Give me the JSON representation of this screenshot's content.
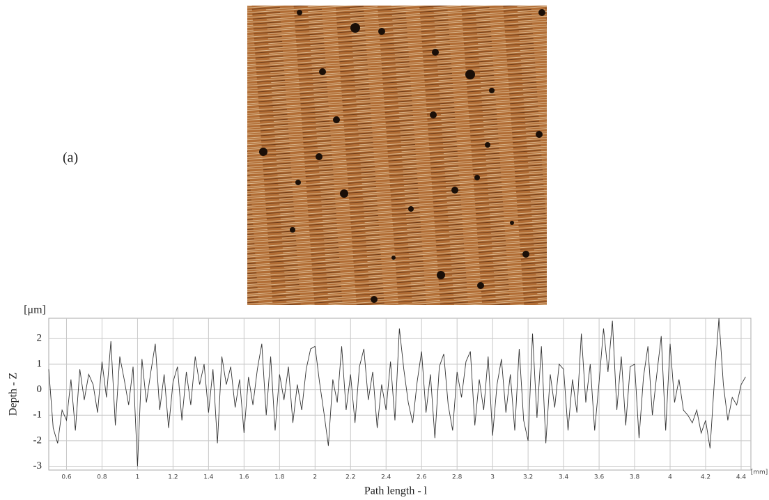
{
  "chart_data": {
    "type": "line",
    "panel_label": "(a)",
    "y_unit": "[μm]",
    "x_unit": "[mm]",
    "ylabel": "Depth - Z",
    "xlabel": "Path length - l",
    "color": "#333333",
    "grid": true,
    "xlim": [
      0.5,
      4.455
    ],
    "ylim": [
      -3.15,
      2.8
    ],
    "xticks": [
      0.6,
      0.8,
      1,
      1.2,
      1.4,
      1.6,
      1.8,
      2,
      2.2,
      2.4,
      2.6,
      2.8,
      3,
      3.2,
      3.4,
      3.6,
      3.8,
      4,
      4.2,
      4.4
    ],
    "yticks": [
      -3,
      -2,
      -1,
      0,
      1,
      2
    ],
    "x": [
      0.5,
      0.525,
      0.55,
      0.575,
      0.6,
      0.625,
      0.65,
      0.675,
      0.7,
      0.725,
      0.75,
      0.775,
      0.8,
      0.825,
      0.85,
      0.875,
      0.9,
      0.925,
      0.95,
      0.975,
      1.0,
      1.025,
      1.05,
      1.075,
      1.1,
      1.125,
      1.15,
      1.175,
      1.2,
      1.225,
      1.25,
      1.275,
      1.3,
      1.325,
      1.35,
      1.375,
      1.4,
      1.425,
      1.45,
      1.475,
      1.5,
      1.525,
      1.55,
      1.575,
      1.6,
      1.625,
      1.65,
      1.675,
      1.7,
      1.725,
      1.75,
      1.775,
      1.8,
      1.825,
      1.85,
      1.875,
      1.9,
      1.925,
      1.95,
      1.975,
      2.0,
      2.025,
      2.05,
      2.075,
      2.1,
      2.125,
      2.15,
      2.175,
      2.2,
      2.225,
      2.25,
      2.275,
      2.3,
      2.325,
      2.35,
      2.375,
      2.4,
      2.425,
      2.45,
      2.475,
      2.5,
      2.525,
      2.55,
      2.575,
      2.6,
      2.625,
      2.65,
      2.675,
      2.7,
      2.725,
      2.75,
      2.775,
      2.8,
      2.825,
      2.85,
      2.875,
      2.9,
      2.925,
      2.95,
      2.975,
      3.0,
      3.025,
      3.05,
      3.075,
      3.1,
      3.125,
      3.15,
      3.175,
      3.2,
      3.225,
      3.25,
      3.275,
      3.3,
      3.325,
      3.35,
      3.375,
      3.4,
      3.425,
      3.45,
      3.475,
      3.5,
      3.525,
      3.55,
      3.575,
      3.6,
      3.625,
      3.65,
      3.675,
      3.7,
      3.725,
      3.75,
      3.775,
      3.8,
      3.825,
      3.85,
      3.875,
      3.9,
      3.925,
      3.95,
      3.975,
      4.0,
      4.025,
      4.05,
      4.075,
      4.1,
      4.125,
      4.15,
      4.175,
      4.2,
      4.225,
      4.25,
      4.275,
      4.3,
      4.325,
      4.35,
      4.375,
      4.4,
      4.425
    ],
    "values": [
      0.8,
      -1.5,
      -2.1,
      -0.8,
      -1.2,
      0.4,
      -1.6,
      0.8,
      -0.4,
      0.6,
      0.2,
      -0.9,
      1.1,
      -0.3,
      1.9,
      -1.4,
      1.3,
      0.4,
      -0.6,
      0.9,
      -3.0,
      1.2,
      -0.5,
      0.7,
      1.8,
      -0.8,
      0.6,
      -1.5,
      0.3,
      0.9,
      -1.2,
      0.7,
      -0.6,
      1.3,
      0.2,
      1.0,
      -0.9,
      0.8,
      -2.1,
      1.3,
      0.2,
      0.9,
      -0.7,
      0.4,
      -1.7,
      0.5,
      -0.6,
      0.8,
      1.8,
      -1.0,
      1.3,
      -1.6,
      0.6,
      -0.4,
      0.9,
      -1.3,
      0.2,
      -0.8,
      0.8,
      1.6,
      1.7,
      0.3,
      -0.9,
      -2.2,
      0.4,
      -0.5,
      1.7,
      -0.8,
      0.6,
      -1.3,
      0.9,
      1.6,
      -0.4,
      0.7,
      -1.5,
      0.2,
      -0.8,
      1.1,
      -1.2,
      2.4,
      0.8,
      -0.5,
      -1.3,
      0.3,
      1.5,
      -0.9,
      0.6,
      -1.9,
      0.9,
      1.4,
      -0.6,
      -1.6,
      0.7,
      -0.3,
      1.1,
      1.5,
      -1.4,
      0.4,
      -0.8,
      1.3,
      -1.8,
      0.2,
      1.2,
      -0.9,
      0.6,
      -1.6,
      1.6,
      -1.2,
      -2.0,
      2.2,
      -1.1,
      1.7,
      -2.1,
      0.6,
      -0.7,
      1.0,
      0.8,
      -1.6,
      0.4,
      -0.9,
      2.2,
      -0.5,
      1.0,
      -1.6,
      0.3,
      2.4,
      0.7,
      2.7,
      -0.8,
      1.3,
      -1.4,
      0.9,
      1.0,
      -1.9,
      0.5,
      1.7,
      -1.0,
      0.6,
      2.1,
      -1.6,
      1.8,
      -0.5,
      0.4,
      -0.8,
      -1.0,
      -1.3,
      -0.8,
      -1.7,
      -1.2,
      -2.3,
      0.4,
      2.8,
      0.2,
      -1.2,
      -0.3,
      -0.6,
      0.2,
      0.5
    ]
  }
}
